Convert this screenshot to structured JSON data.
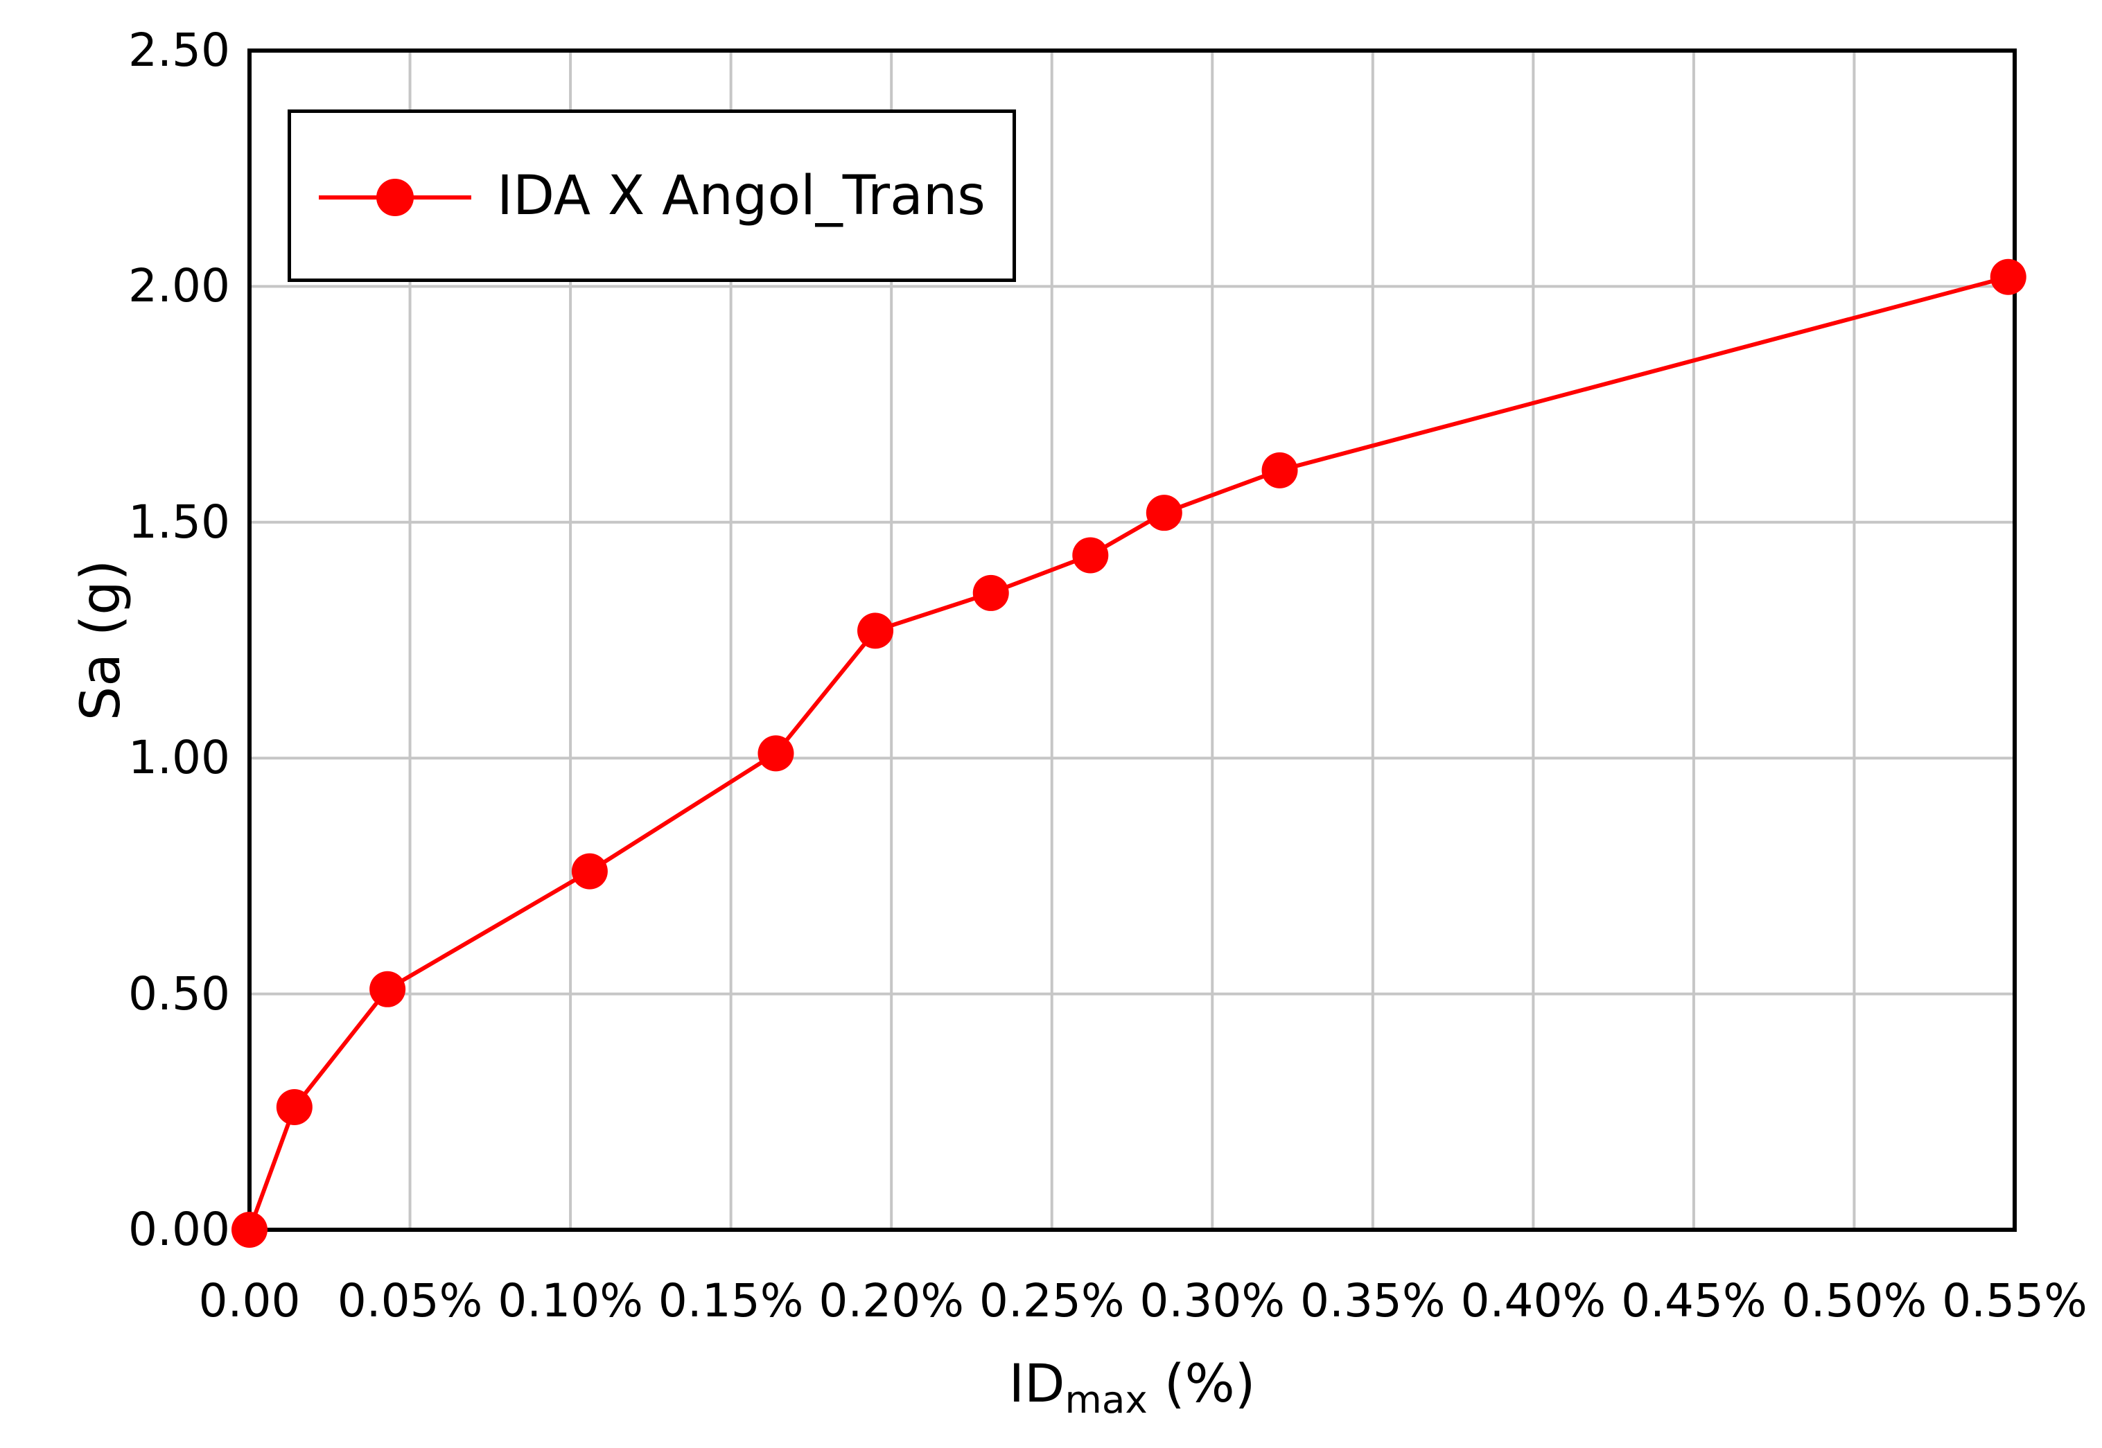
{
  "chart_data": {
    "type": "line",
    "title": "",
    "xlabel_main": "ID",
    "xlabel_sub": "max",
    "xlabel_unit": "(%)",
    "ylabel": "Sa (g)",
    "xlim": [
      0,
      0.55
    ],
    "ylim": [
      0,
      2.5
    ],
    "grid": "on",
    "legend_position": "top-left",
    "x_ticks": [
      {
        "value": 0.0,
        "label": "0.00"
      },
      {
        "value": 0.05,
        "label": "0.05%"
      },
      {
        "value": 0.1,
        "label": "0.10%"
      },
      {
        "value": 0.15,
        "label": "0.15%"
      },
      {
        "value": 0.2,
        "label": "0.20%"
      },
      {
        "value": 0.25,
        "label": "0.25%"
      },
      {
        "value": 0.3,
        "label": "0.30%"
      },
      {
        "value": 0.35,
        "label": "0.35%"
      },
      {
        "value": 0.4,
        "label": "0.40%"
      },
      {
        "value": 0.45,
        "label": "0.45%"
      },
      {
        "value": 0.5,
        "label": "0.50%"
      },
      {
        "value": 0.55,
        "label": "0.55%"
      }
    ],
    "y_ticks": [
      {
        "value": 0.0,
        "label": "0.00"
      },
      {
        "value": 0.5,
        "label": "0.50"
      },
      {
        "value": 1.0,
        "label": "1.00"
      },
      {
        "value": 1.5,
        "label": "1.50"
      },
      {
        "value": 2.0,
        "label": "2.00"
      },
      {
        "value": 2.5,
        "label": "2.50"
      }
    ],
    "series": [
      {
        "name": "IDA X Angol_Trans",
        "color": "#FF0000",
        "marker": "circle",
        "x": [
          0.0,
          0.014,
          0.043,
          0.106,
          0.164,
          0.195,
          0.231,
          0.262,
          0.285,
          0.321,
          0.548
        ],
        "y": [
          0.0,
          0.26,
          0.51,
          0.76,
          1.01,
          1.27,
          1.35,
          1.43,
          1.52,
          1.61,
          2.02
        ]
      }
    ]
  },
  "legend": {
    "label": "IDA X Angol_Trans"
  },
  "colors": {
    "series_red": "#FF0000",
    "grid": "#C6C6C6",
    "axis": "#000000",
    "background": "#FFFFFF"
  }
}
